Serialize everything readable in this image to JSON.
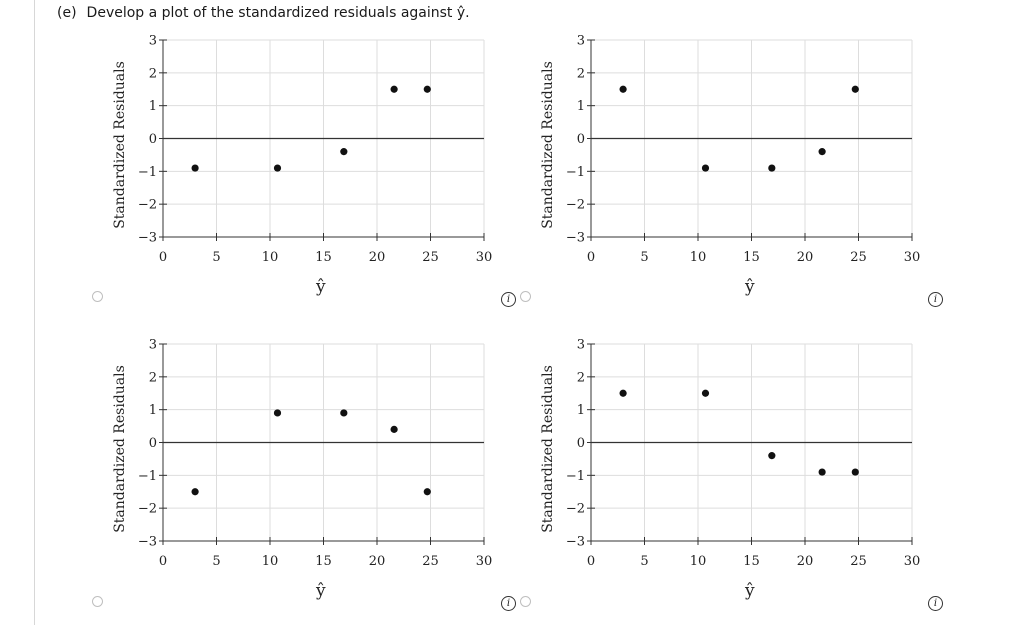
{
  "question": {
    "part": "(e)",
    "text": "Develop a plot of the standardized residuals against ŷ."
  },
  "option_icons": {
    "radio": "radio-button-icon",
    "info": "info-icon"
  },
  "info_glyph": "i",
  "chart_data": [
    {
      "type": "scatter",
      "title": "",
      "xlabel": "ŷ",
      "ylabel": "Standardized Residuals",
      "xlim": [
        0,
        30
      ],
      "ylim": [
        -3,
        3
      ],
      "xticks": [
        "0",
        "5",
        "10",
        "15",
        "20",
        "25",
        "30"
      ],
      "yticks": [
        "3",
        "2",
        "1",
        "0",
        "−1",
        "−2",
        "−3"
      ],
      "grid": true,
      "points": [
        {
          "x": 3,
          "y": -0.9
        },
        {
          "x": 10.7,
          "y": -0.9
        },
        {
          "x": 16.9,
          "y": -0.4
        },
        {
          "x": 21.6,
          "y": 1.5
        },
        {
          "x": 24.7,
          "y": 1.5
        }
      ]
    },
    {
      "type": "scatter",
      "title": "",
      "xlabel": "ŷ",
      "ylabel": "Standardized Residuals",
      "xlim": [
        0,
        30
      ],
      "ylim": [
        -3,
        3
      ],
      "xticks": [
        "0",
        "5",
        "10",
        "15",
        "20",
        "25",
        "30"
      ],
      "yticks": [
        "3",
        "2",
        "1",
        "0",
        "−1",
        "−2",
        "−3"
      ],
      "grid": true,
      "points": [
        {
          "x": 3,
          "y": 1.5
        },
        {
          "x": 10.7,
          "y": -0.9
        },
        {
          "x": 16.9,
          "y": -0.9
        },
        {
          "x": 21.6,
          "y": -0.4
        },
        {
          "x": 24.7,
          "y": 1.5
        }
      ]
    },
    {
      "type": "scatter",
      "title": "",
      "xlabel": "ŷ",
      "ylabel": "Standardized Residuals",
      "xlim": [
        0,
        30
      ],
      "ylim": [
        -3,
        3
      ],
      "xticks": [
        "0",
        "5",
        "10",
        "15",
        "20",
        "25",
        "30"
      ],
      "yticks": [
        "3",
        "2",
        "1",
        "0",
        "−1",
        "−2",
        "−3"
      ],
      "grid": true,
      "points": [
        {
          "x": 3,
          "y": -1.5
        },
        {
          "x": 10.7,
          "y": 0.9
        },
        {
          "x": 16.9,
          "y": 0.9
        },
        {
          "x": 21.6,
          "y": 0.4
        },
        {
          "x": 24.7,
          "y": -1.5
        }
      ]
    },
    {
      "type": "scatter",
      "title": "",
      "xlabel": "ŷ",
      "ylabel": "Standardized Residuals",
      "xlim": [
        0,
        30
      ],
      "ylim": [
        -3,
        3
      ],
      "xticks": [
        "0",
        "5",
        "10",
        "15",
        "20",
        "25",
        "30"
      ],
      "yticks": [
        "3",
        "2",
        "1",
        "0",
        "−1",
        "−2",
        "−3"
      ],
      "grid": true,
      "points": [
        {
          "x": 3,
          "y": 1.5
        },
        {
          "x": 10.7,
          "y": 1.5
        },
        {
          "x": 16.9,
          "y": -0.4
        },
        {
          "x": 21.6,
          "y": -0.9
        },
        {
          "x": 24.7,
          "y": -0.9
        }
      ]
    }
  ]
}
